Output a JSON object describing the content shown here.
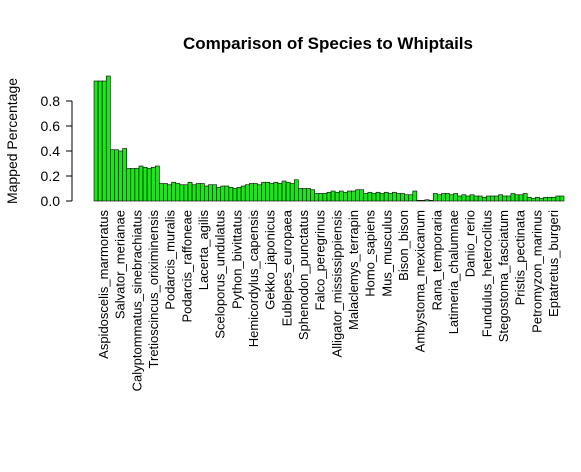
{
  "chart_data": {
    "type": "bar",
    "title": "Comparison of Species to Whiptails",
    "xlabel": "",
    "ylabel": "Mapped Percentage",
    "ylim": [
      0,
      1.0
    ],
    "yticks": [
      "0.0",
      "0.2",
      "0.4",
      "0.6",
      "0.8"
    ],
    "grid": false,
    "legend": "none",
    "bar_color": "#18e818",
    "bar_border": "#000000",
    "tick_labels": [
      "Aspidoscelis_marmoratus",
      "Salvator_merianae",
      "Calyptommatus_sinebrachiatus",
      "Tretioscincus_oriximinensis",
      "Podarcis_muralis",
      "Podarcis_raffoneae",
      "Lacerta_agilis",
      "Sceloporus_undulatus",
      "Python_bivittatus",
      "Hemicordylus_capensis",
      "Gekko_japonicus",
      "Eublepes_europaea",
      "Sphenodon_punctatus",
      "Falco_peregrinus",
      "Alligator_mississippiensis",
      "Malaclemys_terrapin",
      "Homo_sapiens",
      "Mus_musculus",
      "Bison_bison",
      "Ambystoma_mexicanum",
      "Rana_temporaria",
      "Latimeria_chalumnae",
      "Danio_rerio",
      "Fundulus_heteroclitus",
      "Stegostoma_fasciatum",
      "Pristis_pectinata",
      "Petromyzon_marinus",
      "Eptatretus_burgeri"
    ],
    "values": [
      0.96,
      0.96,
      0.96,
      1.0,
      0.41,
      0.41,
      0.4,
      0.42,
      0.26,
      0.26,
      0.26,
      0.28,
      0.27,
      0.26,
      0.27,
      0.28,
      0.14,
      0.14,
      0.13,
      0.15,
      0.14,
      0.13,
      0.13,
      0.15,
      0.13,
      0.14,
      0.14,
      0.12,
      0.13,
      0.13,
      0.11,
      0.12,
      0.12,
      0.11,
      0.1,
      0.11,
      0.12,
      0.13,
      0.14,
      0.14,
      0.13,
      0.15,
      0.15,
      0.14,
      0.15,
      0.14,
      0.16,
      0.15,
      0.14,
      0.17,
      0.1,
      0.1,
      0.1,
      0.09,
      0.06,
      0.06,
      0.06,
      0.07,
      0.08,
      0.07,
      0.08,
      0.07,
      0.08,
      0.08,
      0.09,
      0.09,
      0.06,
      0.07,
      0.06,
      0.07,
      0.06,
      0.07,
      0.06,
      0.07,
      0.06,
      0.06,
      0.05,
      0.05,
      0.08,
      0.0,
      0.0,
      0.01,
      0.0,
      0.06,
      0.05,
      0.06,
      0.06,
      0.05,
      0.06,
      0.04,
      0.05,
      0.04,
      0.05,
      0.04,
      0.04,
      0.03,
      0.04,
      0.04,
      0.04,
      0.05,
      0.04,
      0.04,
      0.06,
      0.05,
      0.05,
      0.06,
      0.03,
      0.02,
      0.03,
      0.02,
      0.03,
      0.03,
      0.03,
      0.04,
      0.04
    ]
  }
}
